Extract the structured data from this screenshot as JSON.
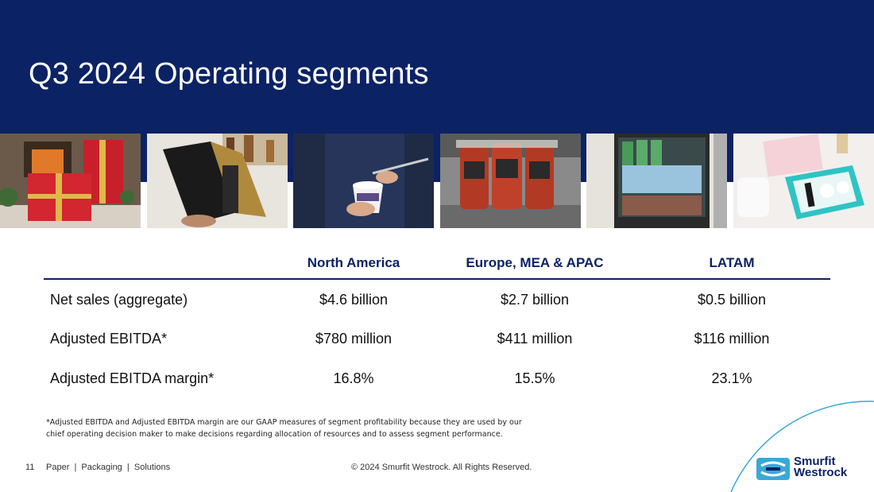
{
  "title": "Q3 2024 Operating segments",
  "photos": [
    {
      "name": "gift-boxes-photo"
    },
    {
      "name": "wine-box-photo"
    },
    {
      "name": "yogurt-cup-photo"
    },
    {
      "name": "tomato-jars-photo"
    },
    {
      "name": "beverage-fridge-photo"
    },
    {
      "name": "cosmetics-box-photo"
    }
  ],
  "table": {
    "columns": [
      "North America",
      "Europe, MEA & APAC",
      "LATAM"
    ],
    "rows": [
      {
        "label": "Net sales (aggregate)",
        "values": [
          "$4.6 billion",
          "$2.7 billion",
          "$0.5 billion"
        ]
      },
      {
        "label": "Adjusted EBITDA*",
        "values": [
          "$780 million",
          "$411 million",
          "$116 million"
        ]
      },
      {
        "label": "Adjusted EBITDA margin*",
        "values": [
          "16.8%",
          "15.5%",
          "23.1%"
        ]
      }
    ]
  },
  "footnote": "*Adjusted EBITDA and Adjusted EBITDA margin are our GAAP measures of segment profitability because they are used by our chief operating decision maker to make decisions regarding allocation of resources and to assess segment performance.",
  "footer": {
    "page_number": "11",
    "tagline": "Paper  |  Packaging  |  Solutions",
    "copyright": "© 2024 Smurfit Westrock. All Rights Reserved."
  },
  "logo": {
    "line1": "Smurfit",
    "line2": "Westrock"
  },
  "colors": {
    "navy": "#0b2265",
    "accent": "#3aa8d8"
  }
}
